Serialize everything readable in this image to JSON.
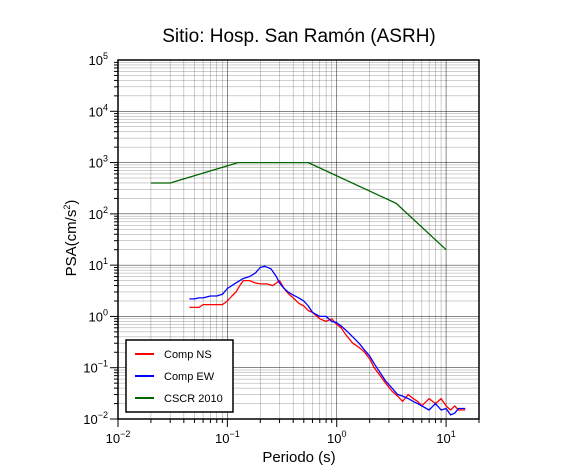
{
  "chart_data": {
    "type": "line",
    "title": "Sitio: Hosp. San Ramón (ASRH)",
    "xlabel": "Periodo (s)",
    "ylabel_main": "PSA(cm/s",
    "ylabel_sup": "2",
    "ylabel_tail": ")",
    "x_scale": "log",
    "y_scale": "log",
    "xlim": [
      0.01,
      20
    ],
    "ylim": [
      0.01,
      100000
    ],
    "grid": true,
    "legend_position": "bottom-left",
    "x_ticks": [
      {
        "value": 0.01,
        "base": "10",
        "exp": "−2"
      },
      {
        "value": 0.1,
        "base": "10",
        "exp": "−1"
      },
      {
        "value": 1,
        "base": "10",
        "exp": "0"
      },
      {
        "value": 10,
        "base": "10",
        "exp": "1"
      }
    ],
    "y_ticks": [
      {
        "value": 0.01,
        "base": "10",
        "exp": "−2"
      },
      {
        "value": 0.1,
        "base": "10",
        "exp": "−1"
      },
      {
        "value": 1,
        "base": "10",
        "exp": "0"
      },
      {
        "value": 10,
        "base": "10",
        "exp": "1"
      },
      {
        "value": 100,
        "base": "10",
        "exp": "2"
      },
      {
        "value": 1000,
        "base": "10",
        "exp": "3"
      },
      {
        "value": 10000,
        "base": "10",
        "exp": "4"
      },
      {
        "value": 100000,
        "base": "10",
        "exp": "5"
      }
    ],
    "series": [
      {
        "name": "Comp NS",
        "color": "#ff0000",
        "points": [
          [
            0.045,
            1.5
          ],
          [
            0.05,
            1.5
          ],
          [
            0.055,
            1.5
          ],
          [
            0.06,
            1.7
          ],
          [
            0.07,
            1.7
          ],
          [
            0.08,
            1.7
          ],
          [
            0.09,
            1.7
          ],
          [
            0.1,
            2.0
          ],
          [
            0.11,
            2.5
          ],
          [
            0.12,
            3.0
          ],
          [
            0.13,
            4.0
          ],
          [
            0.14,
            5.0
          ],
          [
            0.16,
            5.0
          ],
          [
            0.18,
            4.5
          ],
          [
            0.2,
            4.3
          ],
          [
            0.23,
            4.3
          ],
          [
            0.26,
            4.0
          ],
          [
            0.3,
            5.0
          ],
          [
            0.33,
            3.5
          ],
          [
            0.36,
            2.8
          ],
          [
            0.4,
            2.3
          ],
          [
            0.45,
            1.8
          ],
          [
            0.5,
            1.6
          ],
          [
            0.55,
            1.3
          ],
          [
            0.6,
            1.2
          ],
          [
            0.7,
            0.9
          ],
          [
            0.8,
            0.8
          ],
          [
            0.9,
            0.9
          ],
          [
            1.0,
            0.7
          ],
          [
            1.1,
            0.6
          ],
          [
            1.2,
            0.45
          ],
          [
            1.4,
            0.3
          ],
          [
            1.6,
            0.25
          ],
          [
            1.8,
            0.2
          ],
          [
            2.0,
            0.15
          ],
          [
            2.2,
            0.1
          ],
          [
            2.5,
            0.07
          ],
          [
            2.8,
            0.05
          ],
          [
            3.2,
            0.035
          ],
          [
            3.6,
            0.028
          ],
          [
            4.0,
            0.022
          ],
          [
            4.5,
            0.03
          ],
          [
            5.0,
            0.025
          ],
          [
            5.5,
            0.022
          ],
          [
            6.0,
            0.018
          ],
          [
            7.0,
            0.025
          ],
          [
            8.0,
            0.02
          ],
          [
            9.0,
            0.025
          ],
          [
            10,
            0.018
          ],
          [
            11,
            0.015
          ],
          [
            12,
            0.018
          ],
          [
            13,
            0.015
          ],
          [
            15,
            0.015
          ]
        ]
      },
      {
        "name": "Comp EW",
        "color": "#0000ff",
        "points": [
          [
            0.045,
            2.2
          ],
          [
            0.05,
            2.2
          ],
          [
            0.055,
            2.3
          ],
          [
            0.06,
            2.3
          ],
          [
            0.07,
            2.5
          ],
          [
            0.08,
            2.5
          ],
          [
            0.09,
            2.7
          ],
          [
            0.1,
            3.5
          ],
          [
            0.11,
            4.0
          ],
          [
            0.12,
            4.5
          ],
          [
            0.13,
            5.0
          ],
          [
            0.14,
            5.5
          ],
          [
            0.16,
            6.0
          ],
          [
            0.18,
            7.0
          ],
          [
            0.2,
            9.0
          ],
          [
            0.22,
            9.5
          ],
          [
            0.25,
            8.5
          ],
          [
            0.28,
            6.0
          ],
          [
            0.3,
            4.5
          ],
          [
            0.33,
            3.5
          ],
          [
            0.36,
            3.0
          ],
          [
            0.4,
            2.6
          ],
          [
            0.45,
            2.3
          ],
          [
            0.5,
            2.0
          ],
          [
            0.55,
            1.6
          ],
          [
            0.6,
            1.2
          ],
          [
            0.7,
            1.0
          ],
          [
            0.8,
            1.0
          ],
          [
            0.9,
            0.8
          ],
          [
            1.0,
            0.75
          ],
          [
            1.1,
            0.65
          ],
          [
            1.2,
            0.55
          ],
          [
            1.4,
            0.4
          ],
          [
            1.6,
            0.3
          ],
          [
            1.8,
            0.22
          ],
          [
            2.0,
            0.17
          ],
          [
            2.2,
            0.12
          ],
          [
            2.5,
            0.08
          ],
          [
            2.8,
            0.055
          ],
          [
            3.2,
            0.04
          ],
          [
            3.6,
            0.03
          ],
          [
            4.0,
            0.028
          ],
          [
            4.5,
            0.025
          ],
          [
            5.0,
            0.022
          ],
          [
            5.5,
            0.02
          ],
          [
            6.0,
            0.018
          ],
          [
            7.0,
            0.015
          ],
          [
            8.0,
            0.02
          ],
          [
            9.0,
            0.015
          ],
          [
            10,
            0.016
          ],
          [
            11,
            0.012
          ],
          [
            12,
            0.013
          ],
          [
            13,
            0.016
          ],
          [
            15,
            0.016
          ]
        ]
      },
      {
        "name": "CSCR 2010",
        "color": "#006400",
        "points": [
          [
            0.02,
            400
          ],
          [
            0.03,
            400
          ],
          [
            0.125,
            1000
          ],
          [
            0.55,
            1000
          ],
          [
            3.5,
            160
          ],
          [
            10,
            20
          ]
        ]
      }
    ]
  }
}
